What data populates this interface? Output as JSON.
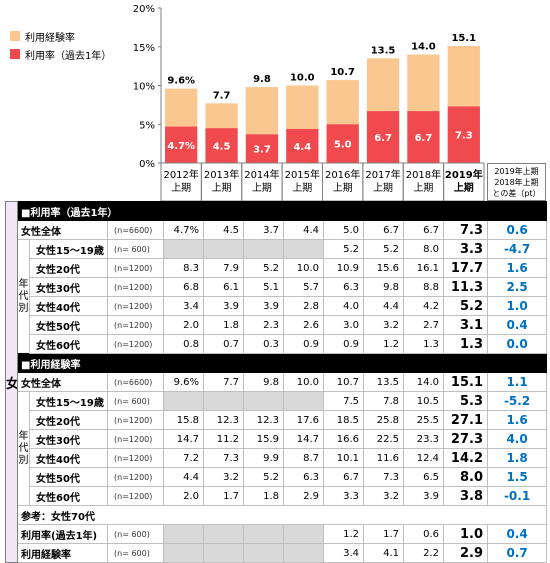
{
  "chart_data": {
    "type": "bar",
    "stacked": true,
    "categories": [
      "2012年上期",
      "2013年上期",
      "2014年上期",
      "2015年上期",
      "2016年上期",
      "2017年上期",
      "2018年上期",
      "2019年上期"
    ],
    "category_lines": [
      [
        "2012年",
        "上期"
      ],
      [
        "2013年",
        "上期"
      ],
      [
        "2014年",
        "上期"
      ],
      [
        "2015年",
        "上期"
      ],
      [
        "2016年",
        "上期"
      ],
      [
        "2017年",
        "上期"
      ],
      [
        "2018年",
        "上期"
      ],
      [
        "2019年",
        "上期"
      ]
    ],
    "series": [
      {
        "name": "利用率（過去1年）",
        "values": [
          4.7,
          4.5,
          3.7,
          4.4,
          5.0,
          6.7,
          6.7,
          7.3
        ],
        "color": "#f04a4f",
        "labels": [
          "4.7%",
          "4.5",
          "3.7",
          "4.4",
          "5.0",
          "6.7",
          "6.7",
          "7.3"
        ]
      },
      {
        "name": "利用経験率",
        "total_values": [
          9.6,
          7.7,
          9.8,
          10.0,
          10.7,
          13.5,
          14.0,
          15.1
        ],
        "color": "#fbc791",
        "labels": [
          "9.6%",
          "7.7",
          "9.8",
          "10.0",
          "10.7",
          "13.5",
          "14.0",
          "15.1"
        ]
      }
    ],
    "ylim": [
      0,
      20
    ],
    "yticks": [
      "0%",
      "5%",
      "10%",
      "15%",
      "20%"
    ],
    "legend_position": "top-left",
    "grid": false
  },
  "legend": {
    "items": [
      {
        "label": "利用経験率",
        "color": "#fbc791"
      },
      {
        "label": "利用率（過去1年）",
        "color": "#f04a4f"
      }
    ]
  },
  "diff_header": [
    "2019年上期",
    "2018年上期",
    "との差（pt）"
  ],
  "table": {
    "gender_label": "女性",
    "age_group_label": [
      "年",
      "代",
      "別"
    ],
    "sections": [
      {
        "title": "■利用率（過去1年）",
        "total": {
          "label": "女性全体",
          "n": "(n=6600)",
          "values": [
            "4.7%",
            "4.5",
            "3.7",
            "4.4",
            "5.0",
            "6.7",
            "6.7",
            "7.3"
          ],
          "diff": "0.6"
        },
        "rows": [
          {
            "label": "女性15～19歳",
            "n": "(n=  600)",
            "values": [
              "",
              "",
              "",
              "",
              "5.2",
              "5.2",
              "8.0",
              "3.3"
            ],
            "diff": "-4.7"
          },
          {
            "label": "女性20代",
            "n": "(n=1200)",
            "values": [
              "8.3",
              "7.9",
              "5.2",
              "10.0",
              "10.9",
              "15.6",
              "16.1",
              "17.7"
            ],
            "diff": "1.6"
          },
          {
            "label": "女性30代",
            "n": "(n=1200)",
            "values": [
              "6.8",
              "6.1",
              "5.1",
              "5.7",
              "6.3",
              "9.8",
              "8.8",
              "11.3"
            ],
            "diff": "2.5"
          },
          {
            "label": "女性40代",
            "n": "(n=1200)",
            "values": [
              "3.4",
              "3.9",
              "3.9",
              "2.8",
              "4.0",
              "4.4",
              "4.2",
              "5.2"
            ],
            "diff": "1.0"
          },
          {
            "label": "女性50代",
            "n": "(n=1200)",
            "values": [
              "2.0",
              "1.8",
              "2.3",
              "2.6",
              "3.0",
              "3.2",
              "2.7",
              "3.1"
            ],
            "diff": "0.4"
          },
          {
            "label": "女性60代",
            "n": "(n=1200)",
            "values": [
              "0.8",
              "0.7",
              "0.3",
              "0.9",
              "0.9",
              "1.2",
              "1.3",
              "1.3"
            ],
            "diff": "0.0"
          }
        ]
      },
      {
        "title": "■利用経験率",
        "total": {
          "label": "女性全体",
          "n": "(n=6600)",
          "values": [
            "9.6%",
            "7.7",
            "9.8",
            "10.0",
            "10.7",
            "13.5",
            "14.0",
            "15.1"
          ],
          "diff": "1.1"
        },
        "rows": [
          {
            "label": "女性15～19歳",
            "n": "(n=  600)",
            "values": [
              "",
              "",
              "",
              "",
              "7.5",
              "7.8",
              "10.5",
              "5.3"
            ],
            "diff": "-5.2"
          },
          {
            "label": "女性20代",
            "n": "(n=1200)",
            "values": [
              "15.8",
              "12.3",
              "12.3",
              "17.6",
              "18.5",
              "25.8",
              "25.5",
              "27.1"
            ],
            "diff": "1.6"
          },
          {
            "label": "女性30代",
            "n": "(n=1200)",
            "values": [
              "14.7",
              "11.2",
              "15.9",
              "14.7",
              "16.6",
              "22.5",
              "23.3",
              "27.3"
            ],
            "diff": "4.0"
          },
          {
            "label": "女性40代",
            "n": "(n=1200)",
            "values": [
              "7.2",
              "7.3",
              "9.9",
              "8.7",
              "10.1",
              "11.6",
              "12.4",
              "14.2"
            ],
            "diff": "1.8"
          },
          {
            "label": "女性50代",
            "n": "(n=1200)",
            "values": [
              "4.4",
              "3.2",
              "5.2",
              "6.3",
              "6.7",
              "7.3",
              "6.5",
              "8.0"
            ],
            "diff": "1.5"
          },
          {
            "label": "女性60代",
            "n": "(n=1200)",
            "values": [
              "2.0",
              "1.7",
              "1.8",
              "2.9",
              "3.3",
              "3.2",
              "3.9",
              "3.8"
            ],
            "diff": "-0.1"
          }
        ]
      }
    ],
    "reference": {
      "title": "参考：女性70代",
      "rows": [
        {
          "label": "利用率(過去1年)",
          "n": "(n=  600)",
          "values": [
            "",
            "",
            "",
            "",
            "1.2",
            "1.7",
            "0.6",
            "1.0"
          ],
          "diff": "0.4"
        },
        {
          "label": "利用経験率",
          "n": "(n=  600)",
          "values": [
            "",
            "",
            "",
            "",
            "3.4",
            "4.1",
            "2.2",
            "2.9"
          ],
          "diff": "0.7"
        }
      ]
    }
  }
}
